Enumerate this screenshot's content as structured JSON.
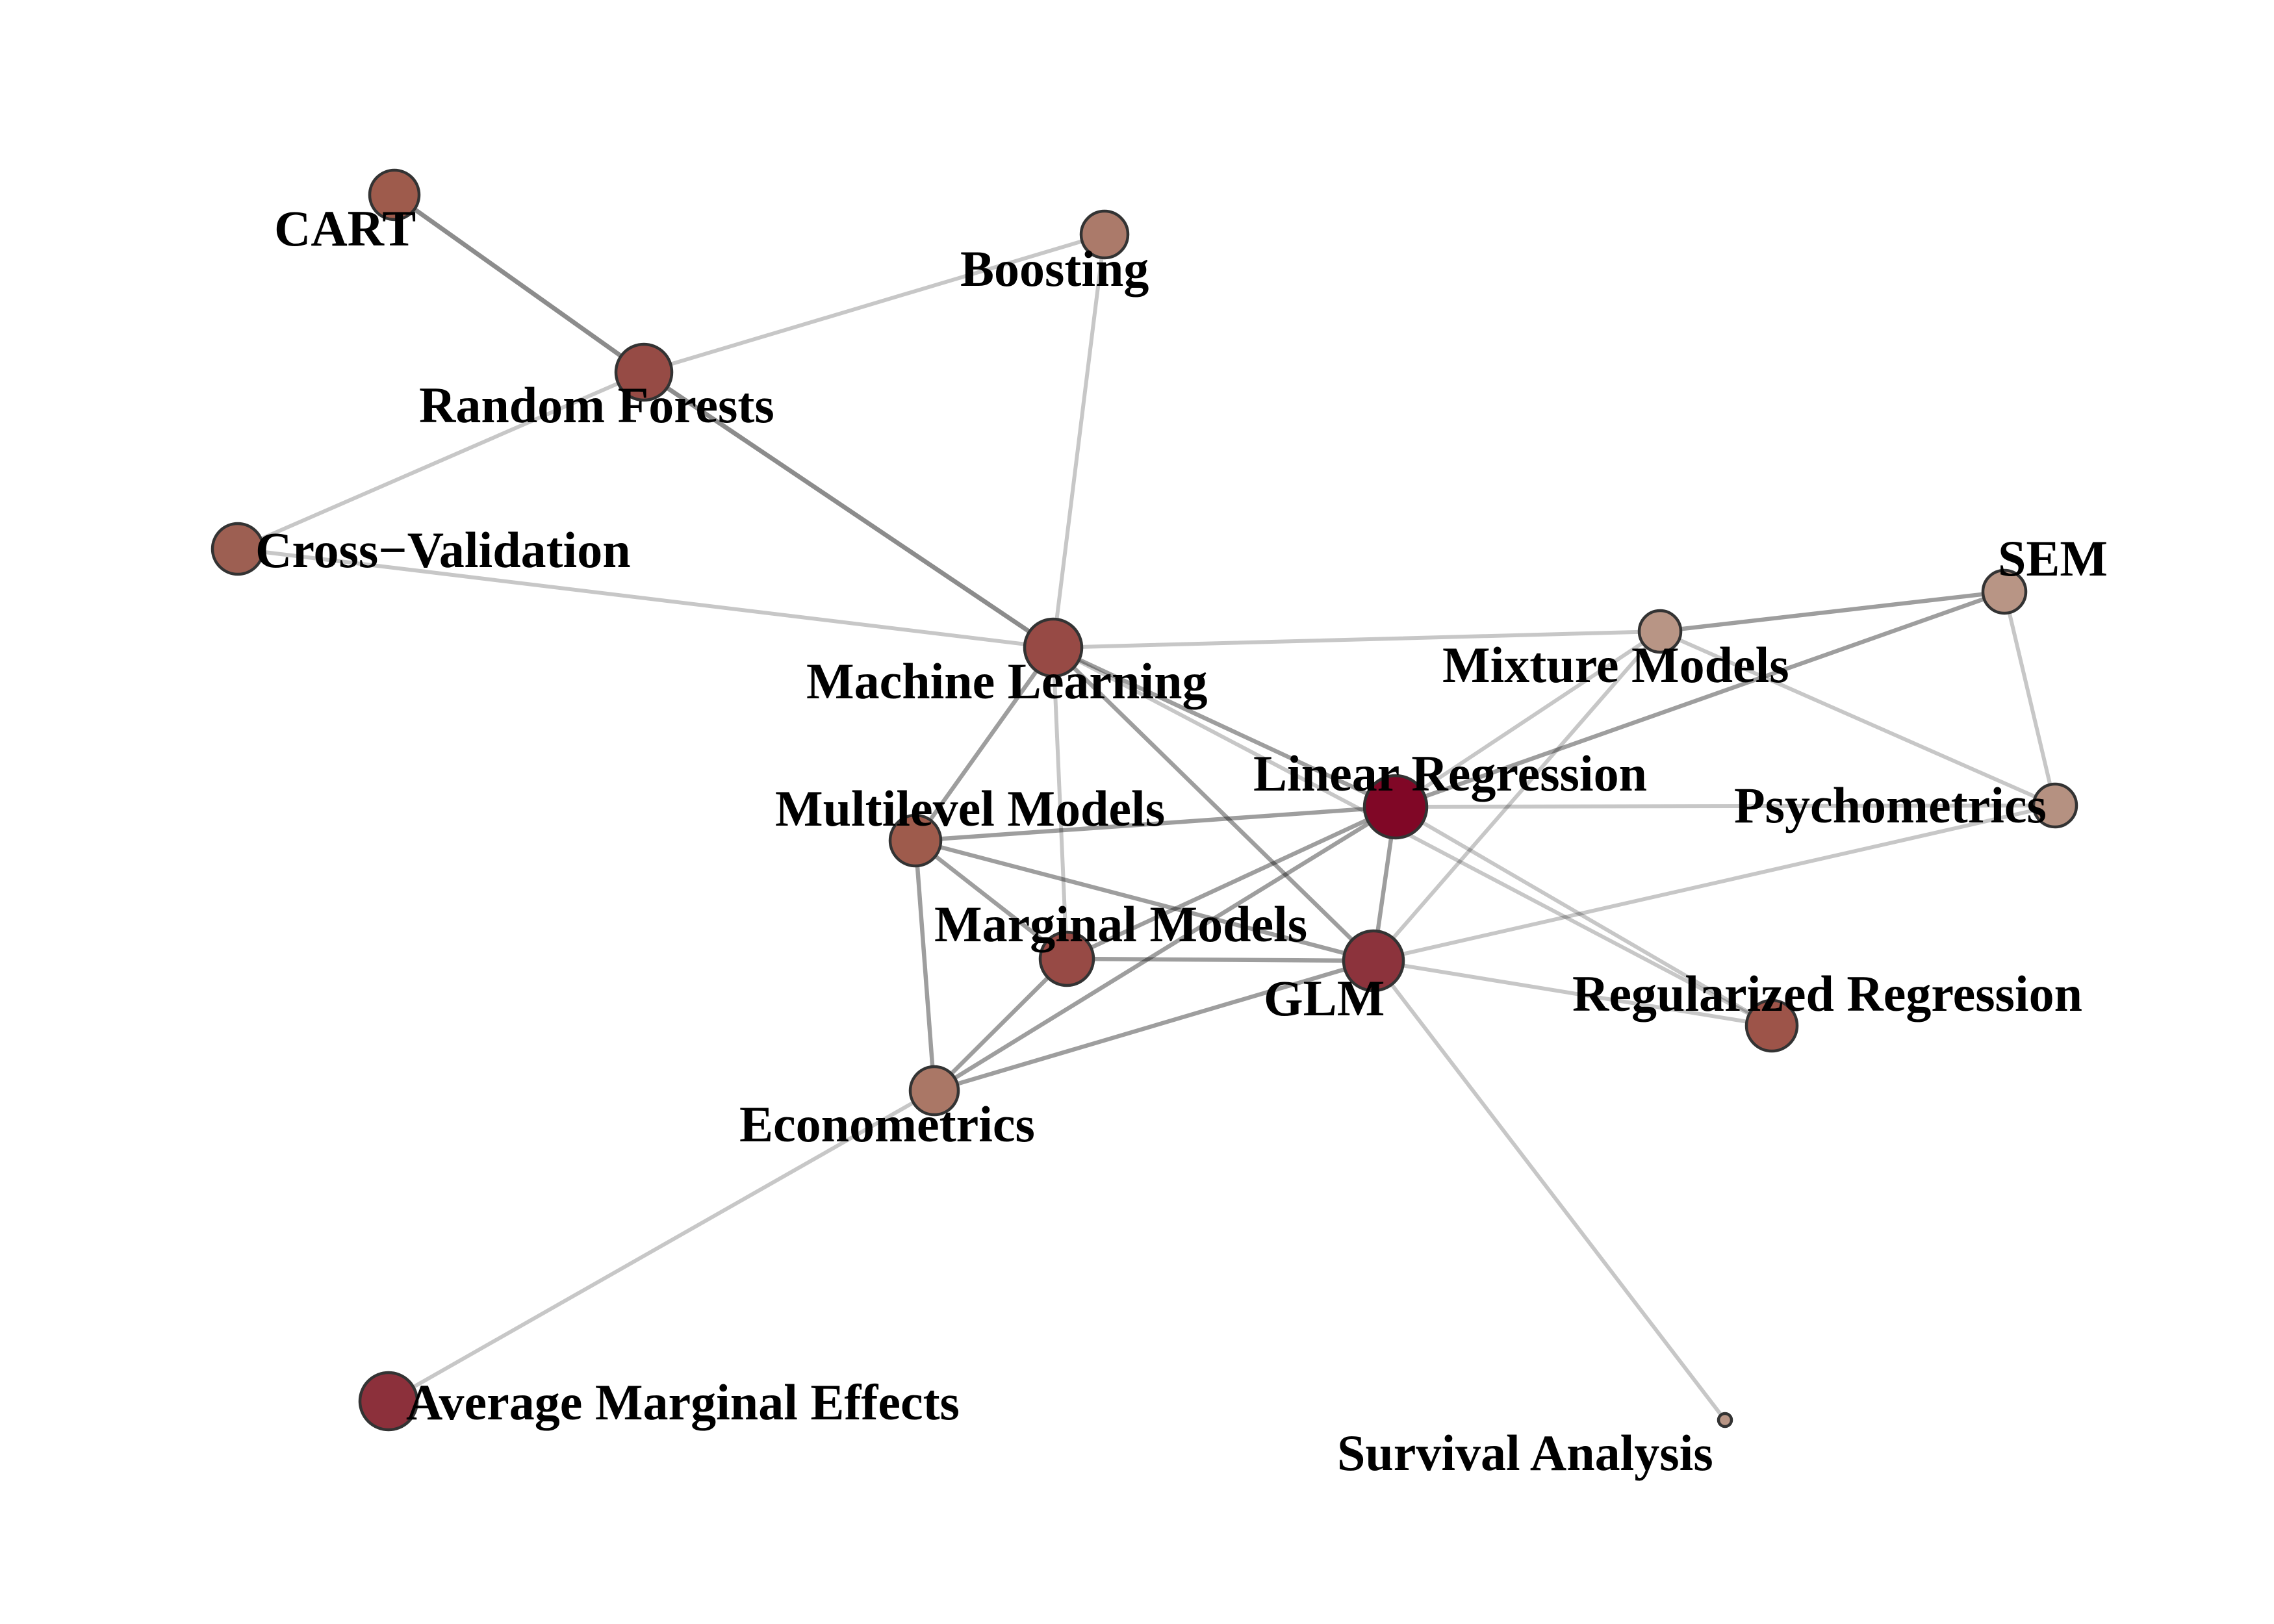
{
  "nodes": [
    {
      "id": "cart",
      "label": "CART",
      "color": "#9e5b4c"
    },
    {
      "id": "boosting",
      "label": "Boosting",
      "color": "#ab7a6a"
    },
    {
      "id": "random-forests",
      "label": "Random Forests",
      "color": "#964b45"
    },
    {
      "id": "cross-validation",
      "label": "Cross−Validation",
      "color": "#9d5f52"
    },
    {
      "id": "machine-learning",
      "label": "Machine Learning",
      "color": "#974a45"
    },
    {
      "id": "mixture-models",
      "label": "Mixture Models",
      "color": "#b89585"
    },
    {
      "id": "sem",
      "label": "SEM",
      "color": "#b89585"
    },
    {
      "id": "linear-regression",
      "label": "Linear Regression",
      "color": "#800726"
    },
    {
      "id": "psychometrics",
      "label": "Psychometrics",
      "color": "#b59181"
    },
    {
      "id": "multilevel-models",
      "label": "Multilevel Models",
      "color": "#9e5b4c"
    },
    {
      "id": "marginal-models",
      "label": "Marginal Models",
      "color": "#974a45"
    },
    {
      "id": "glm",
      "label": "GLM",
      "color": "#8c333c"
    },
    {
      "id": "regularized-regression",
      "label": "Regularized Regression",
      "color": "#9d5449"
    },
    {
      "id": "econometrics",
      "label": "Econometrics",
      "color": "#aa7766"
    },
    {
      "id": "average-marginal-effects",
      "label": "Average Marginal Effects",
      "color": "#8c303b"
    },
    {
      "id": "survival-analysis",
      "label": "Survival Analysis",
      "color": "#b89585"
    }
  ],
  "edges": [
    {
      "source": "cart",
      "target": "random-forests",
      "strength": "strong"
    },
    {
      "source": "random-forests",
      "target": "boosting",
      "strength": "weak"
    },
    {
      "source": "random-forests",
      "target": "cross-validation",
      "strength": "weak"
    },
    {
      "source": "random-forests",
      "target": "machine-learning",
      "strength": "strong"
    },
    {
      "source": "boosting",
      "target": "machine-learning",
      "strength": "weak"
    },
    {
      "source": "cross-validation",
      "target": "machine-learning",
      "strength": "weak"
    },
    {
      "source": "machine-learning",
      "target": "mixture-models",
      "strength": "weak"
    },
    {
      "source": "machine-learning",
      "target": "linear-regression",
      "strength": "medium"
    },
    {
      "source": "machine-learning",
      "target": "multilevel-models",
      "strength": "medium"
    },
    {
      "source": "machine-learning",
      "target": "marginal-models",
      "strength": "weak"
    },
    {
      "source": "machine-learning",
      "target": "glm",
      "strength": "medium"
    },
    {
      "source": "machine-learning",
      "target": "regularized-regression",
      "strength": "weak"
    },
    {
      "source": "mixture-models",
      "target": "sem",
      "strength": "medium"
    },
    {
      "source": "mixture-models",
      "target": "psychometrics",
      "strength": "weak"
    },
    {
      "source": "mixture-models",
      "target": "linear-regression",
      "strength": "weak"
    },
    {
      "source": "mixture-models",
      "target": "glm",
      "strength": "weak"
    },
    {
      "source": "sem",
      "target": "linear-regression",
      "strength": "medium"
    },
    {
      "source": "sem",
      "target": "psychometrics",
      "strength": "weak"
    },
    {
      "source": "linear-regression",
      "target": "psychometrics",
      "strength": "weak"
    },
    {
      "source": "linear-regression",
      "target": "multilevel-models",
      "strength": "medium"
    },
    {
      "source": "linear-regression",
      "target": "glm",
      "strength": "medium"
    },
    {
      "source": "linear-regression",
      "target": "regularized-regression",
      "strength": "weak"
    },
    {
      "source": "linear-regression",
      "target": "econometrics",
      "strength": "medium"
    },
    {
      "source": "linear-regression",
      "target": "marginal-models",
      "strength": "medium"
    },
    {
      "source": "multilevel-models",
      "target": "marginal-models",
      "strength": "medium"
    },
    {
      "source": "multilevel-models",
      "target": "glm",
      "strength": "medium"
    },
    {
      "source": "multilevel-models",
      "target": "econometrics",
      "strength": "medium"
    },
    {
      "source": "marginal-models",
      "target": "glm",
      "strength": "medium"
    },
    {
      "source": "marginal-models",
      "target": "econometrics",
      "strength": "medium"
    },
    {
      "source": "glm",
      "target": "econometrics",
      "strength": "medium"
    },
    {
      "source": "glm",
      "target": "psychometrics",
      "strength": "weak"
    },
    {
      "source": "glm",
      "target": "regularized-regression",
      "strength": "weak"
    },
    {
      "source": "glm",
      "target": "survival-analysis",
      "strength": "weak"
    },
    {
      "source": "econometrics",
      "target": "average-marginal-effects",
      "strength": "weak"
    }
  ]
}
